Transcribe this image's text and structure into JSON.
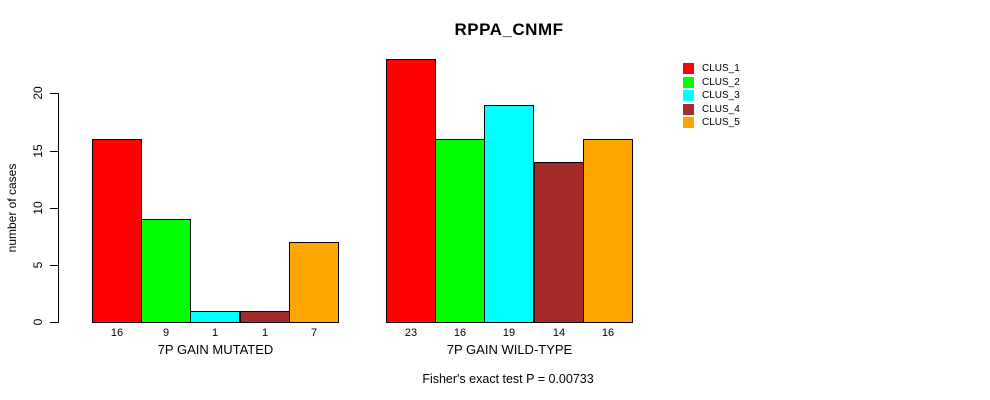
{
  "chart_data": {
    "type": "bar",
    "title": "RPPA_CNMF",
    "ylabel": "number of cases",
    "xlabel": "",
    "ylim": [
      0,
      23
    ],
    "yticks": [
      0,
      5,
      10,
      15,
      20
    ],
    "grid": false,
    "legend_position": "right",
    "series": [
      {
        "name": "CLUS_1",
        "color": "#FF0000"
      },
      {
        "name": "CLUS_2",
        "color": "#00FF00"
      },
      {
        "name": "CLUS_3",
        "color": "#00FFFF"
      },
      {
        "name": "CLUS_4",
        "color": "#A52A2A"
      },
      {
        "name": "CLUS_5",
        "color": "#FFA500"
      }
    ],
    "groups": [
      {
        "label": "7P GAIN MUTATED",
        "values": [
          16,
          9,
          1,
          1,
          7
        ]
      },
      {
        "label": "7P GAIN WILD-TYPE",
        "values": [
          23,
          16,
          19,
          14,
          16
        ]
      }
    ],
    "bar_value_labels_shown": true,
    "annotation": "Fisher's exact test P = 0.00733"
  }
}
